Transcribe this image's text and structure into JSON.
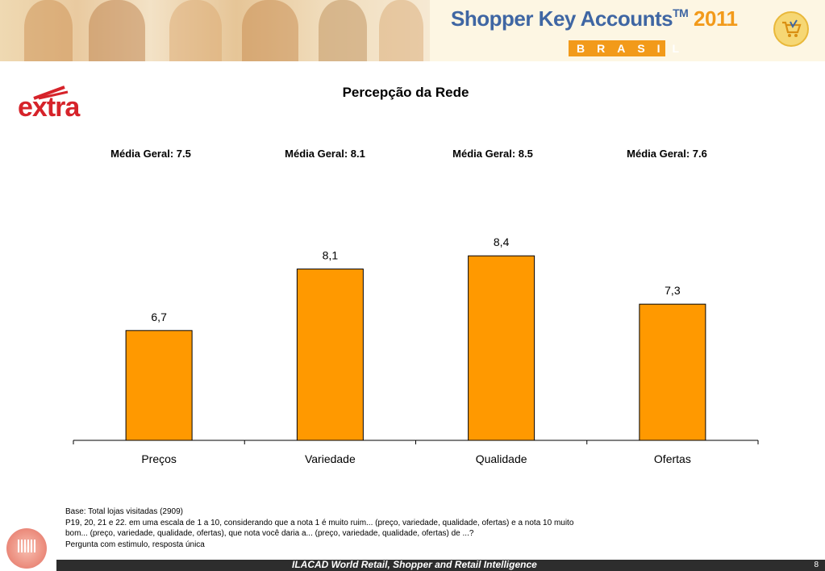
{
  "header": {
    "brand_title": "Shopper Key Accounts",
    "brand_tm": "TM",
    "brand_year": "2011",
    "brand_sub": "BRASIL"
  },
  "logo": {
    "text": "extra"
  },
  "colors": {
    "bar": "#ff9900",
    "bar_stroke": "#000000",
    "brand_blue": "#3f66a3",
    "brand_orange": "#f29a1a",
    "logo_red": "#d6232a"
  },
  "averages": [
    "Média Geral: 7.5",
    "Média Geral: 8.1",
    "Média Geral: 8.5",
    "Média Geral: 7.6"
  ],
  "chart_data": {
    "type": "bar",
    "title": "Percepção da Rede",
    "categories": [
      "Preços",
      "Variedade",
      "Qualidade",
      "Ofertas"
    ],
    "values": [
      6.7,
      8.1,
      8.4,
      7.3
    ],
    "data_labels": [
      "6,7",
      "8,1",
      "8,4",
      "7,3"
    ],
    "ylim": [
      4.2,
      8.9
    ],
    "grid": false,
    "legend": "none"
  },
  "footnote": {
    "line1": "Base: Total lojas visitadas (2909)",
    "line2": "P19, 20, 21 e 22. em uma escala de 1 a 10, considerando que a nota 1 é muito ruim... (preço, variedade, qualidade, ofertas)  e a nota 10 muito",
    "line3": "bom...  (preço, variedade, qualidade, ofertas), que nota você daria a... (preço, variedade, qualidade, ofertas) de ...?",
    "line4": "Pergunta com estimulo, resposta única"
  },
  "footer": {
    "text": "ILACAD World Retail, Shopper and Retail Intelligence",
    "page_number": "8"
  }
}
